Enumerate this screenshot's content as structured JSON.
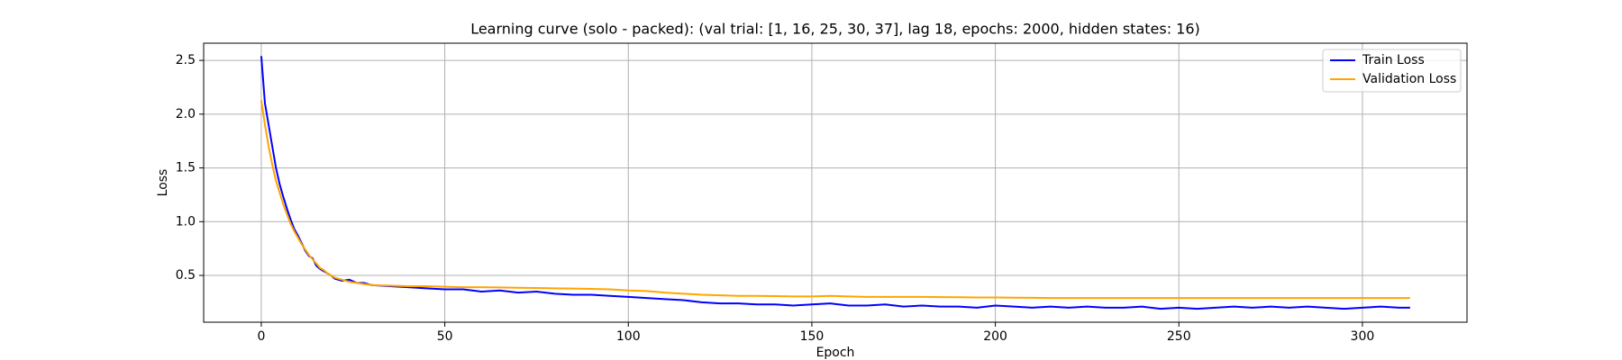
{
  "chart_data": {
    "type": "line",
    "title": "Learning curve (solo - packed): (val trial: [1, 16, 25, 30, 37], lag 18, epochs: 2000, hidden states: 16)",
    "xlabel": "Epoch",
    "ylabel": "Loss",
    "x": [
      0,
      1,
      2,
      3,
      4,
      5,
      6,
      7,
      8,
      9,
      10,
      11,
      12,
      13,
      14,
      15,
      16,
      17,
      18,
      19,
      20,
      22,
      24,
      26,
      28,
      30,
      35,
      40,
      45,
      50,
      55,
      60,
      65,
      70,
      75,
      80,
      85,
      90,
      95,
      100,
      105,
      110,
      115,
      120,
      125,
      130,
      135,
      140,
      145,
      150,
      155,
      160,
      165,
      170,
      175,
      180,
      185,
      190,
      195,
      200,
      205,
      210,
      215,
      220,
      225,
      230,
      235,
      240,
      245,
      250,
      255,
      260,
      265,
      270,
      275,
      280,
      285,
      290,
      295,
      300,
      305,
      310,
      313
    ],
    "series": [
      {
        "name": "Train Loss",
        "color": "#0000ff",
        "values": [
          2.54,
          2.1,
          1.9,
          1.7,
          1.5,
          1.35,
          1.23,
          1.12,
          1.02,
          0.93,
          0.87,
          0.8,
          0.73,
          0.68,
          0.66,
          0.59,
          0.56,
          0.54,
          0.52,
          0.5,
          0.47,
          0.45,
          0.46,
          0.43,
          0.43,
          0.41,
          0.4,
          0.39,
          0.38,
          0.37,
          0.37,
          0.35,
          0.36,
          0.34,
          0.35,
          0.33,
          0.32,
          0.32,
          0.31,
          0.3,
          0.29,
          0.28,
          0.27,
          0.25,
          0.24,
          0.24,
          0.23,
          0.23,
          0.22,
          0.23,
          0.24,
          0.22,
          0.22,
          0.23,
          0.21,
          0.22,
          0.21,
          0.21,
          0.2,
          0.22,
          0.21,
          0.2,
          0.21,
          0.2,
          0.21,
          0.2,
          0.2,
          0.21,
          0.19,
          0.2,
          0.19,
          0.2,
          0.21,
          0.2,
          0.21,
          0.2,
          0.21,
          0.2,
          0.19,
          0.2,
          0.21,
          0.2,
          0.2
        ]
      },
      {
        "name": "Validation Loss",
        "color": "#ffa500",
        "values": [
          2.13,
          1.9,
          1.7,
          1.53,
          1.38,
          1.27,
          1.16,
          1.07,
          0.98,
          0.91,
          0.85,
          0.79,
          0.74,
          0.69,
          0.65,
          0.61,
          0.57,
          0.55,
          0.52,
          0.5,
          0.48,
          0.46,
          0.44,
          0.43,
          0.42,
          0.41,
          0.405,
          0.4,
          0.4,
          0.395,
          0.39,
          0.39,
          0.388,
          0.385,
          0.383,
          0.38,
          0.378,
          0.375,
          0.37,
          0.36,
          0.355,
          0.34,
          0.33,
          0.32,
          0.315,
          0.31,
          0.31,
          0.308,
          0.305,
          0.305,
          0.31,
          0.305,
          0.3,
          0.3,
          0.3,
          0.3,
          0.298,
          0.297,
          0.295,
          0.295,
          0.293,
          0.292,
          0.29,
          0.29,
          0.29,
          0.29,
          0.29,
          0.29,
          0.29,
          0.29,
          0.29,
          0.29,
          0.29,
          0.29,
          0.29,
          0.29,
          0.29,
          0.29,
          0.29,
          0.29,
          0.29,
          0.29,
          0.29
        ]
      }
    ],
    "xlim": [
      -15.7,
      328.5
    ],
    "ylim": [
      0.065,
      2.66
    ],
    "xticks": [
      0,
      50,
      100,
      150,
      200,
      250,
      300
    ],
    "yticks": [
      0.5,
      {
        "value": 1,
        "label": "1.0"
      },
      1.5,
      {
        "value": 2,
        "label": "2.0"
      },
      2.5
    ],
    "grid": true,
    "legend": "upper right"
  }
}
